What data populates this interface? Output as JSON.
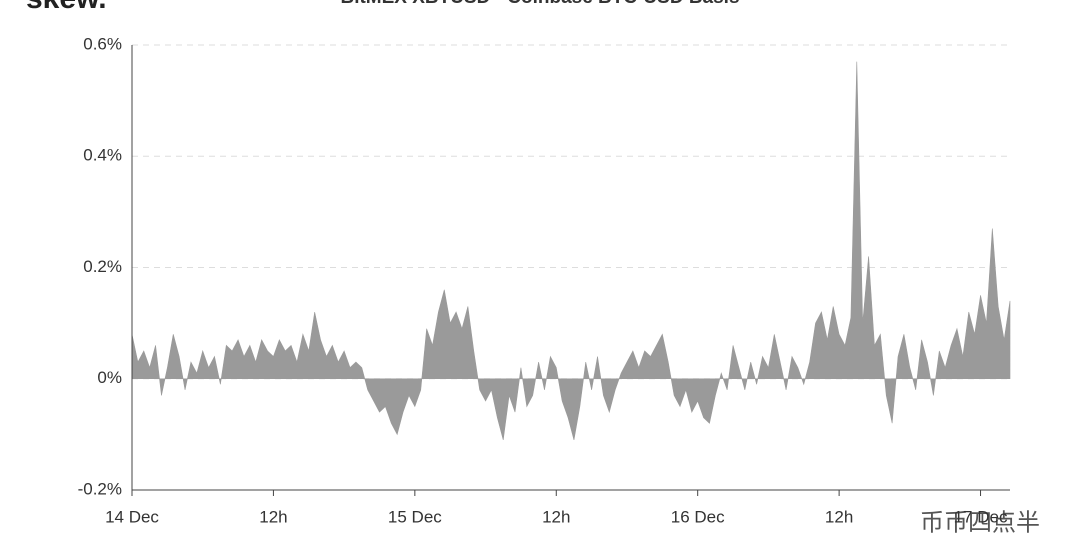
{
  "chart_data": {
    "type": "area",
    "brand": "skew.",
    "title": "BitMEX XBTUSD - Coinbase BTC-USD Basis",
    "watermark": "币币四点半",
    "x": [
      0,
      0.5,
      1,
      1.5,
      2,
      2.5,
      3,
      3.5,
      4,
      4.5,
      5,
      5.5,
      6,
      6.5,
      7,
      7.5,
      8,
      8.5,
      9,
      9.5,
      10,
      10.5,
      11,
      11.5,
      12,
      12.5,
      13,
      13.5,
      14,
      14.5,
      15,
      15.5,
      16,
      16.5,
      17,
      17.5,
      18,
      18.5,
      19,
      19.5,
      20,
      20.5,
      21,
      21.5,
      22,
      22.5,
      23,
      23.5,
      24,
      24.5,
      25,
      25.5,
      26,
      26.5,
      27,
      27.5,
      28,
      28.5,
      29,
      29.5,
      30,
      30.5,
      31,
      31.5,
      32,
      32.5,
      33,
      33.5,
      34,
      34.5,
      35,
      35.5,
      36,
      36.5,
      37,
      37.5,
      38,
      38.5,
      39,
      39.5,
      40,
      40.5,
      41,
      41.5,
      42,
      42.5,
      43,
      43.5,
      44,
      44.5,
      45,
      45.5,
      46,
      46.5,
      47,
      47.5,
      48,
      48.5,
      49,
      49.5,
      50,
      50.5,
      51,
      51.5,
      52,
      52.5,
      53,
      53.5,
      54,
      54.5,
      55,
      55.5,
      56,
      56.5,
      57,
      57.5,
      58,
      58.5,
      59,
      59.5,
      60,
      60.5,
      61,
      61.5,
      62,
      62.5,
      63,
      63.5,
      64,
      64.5,
      65,
      65.5,
      66,
      66.5,
      67,
      67.5,
      68,
      68.5,
      69,
      69.5,
      70,
      70.5,
      71,
      71.5,
      72,
      72.5,
      73,
      73.5,
      74,
      74.5
    ],
    "series": [
      {
        "color": "#9a9a9a",
        "values": [
          0.08,
          0.03,
          0.05,
          0.02,
          0.06,
          -0.03,
          0.02,
          0.08,
          0.04,
          -0.02,
          0.03,
          0.01,
          0.05,
          0.02,
          0.04,
          -0.01,
          0.06,
          0.05,
          0.07,
          0.04,
          0.06,
          0.03,
          0.07,
          0.05,
          0.04,
          0.07,
          0.05,
          0.06,
          0.03,
          0.08,
          0.05,
          0.12,
          0.07,
          0.04,
          0.06,
          0.03,
          0.05,
          0.02,
          0.03,
          0.02,
          -0.02,
          -0.04,
          -0.06,
          -0.05,
          -0.08,
          -0.1,
          -0.06,
          -0.03,
          -0.05,
          -0.02,
          0.09,
          0.06,
          0.12,
          0.16,
          0.1,
          0.12,
          0.09,
          0.13,
          0.05,
          -0.02,
          -0.04,
          -0.02,
          -0.07,
          -0.11,
          -0.03,
          -0.06,
          0.02,
          -0.05,
          -0.03,
          0.03,
          -0.02,
          0.04,
          0.02,
          -0.04,
          -0.07,
          -0.11,
          -0.05,
          0.03,
          -0.02,
          0.04,
          -0.03,
          -0.06,
          -0.02,
          0.01,
          0.03,
          0.05,
          0.02,
          0.05,
          0.04,
          0.06,
          0.08,
          0.03,
          -0.03,
          -0.05,
          -0.02,
          -0.06,
          -0.04,
          -0.07,
          -0.08,
          -0.03,
          0.01,
          -0.02,
          0.06,
          0.02,
          -0.02,
          0.03,
          -0.01,
          0.04,
          0.02,
          0.08,
          0.03,
          -0.02,
          0.04,
          0.02,
          -0.01,
          0.03,
          0.1,
          0.12,
          0.07,
          0.13,
          0.08,
          0.06,
          0.11,
          0.57,
          0.1,
          0.22,
          0.06,
          0.08,
          -0.03,
          -0.08,
          0.04,
          0.08,
          0.02,
          -0.02,
          0.07,
          0.03,
          -0.03,
          0.05,
          0.02,
          0.06,
          0.09,
          0.04,
          0.12,
          0.08,
          0.15,
          0.1,
          0.27,
          0.13,
          0.07,
          0.14
        ]
      }
    ],
    "xlim": [
      0,
      74.5
    ],
    "xticks": [
      {
        "value": 0,
        "label": "14 Dec"
      },
      {
        "value": 12,
        "label": "12h"
      },
      {
        "value": 24,
        "label": "15 Dec"
      },
      {
        "value": 36,
        "label": "12h"
      },
      {
        "value": 48,
        "label": "16 Dec"
      },
      {
        "value": 60,
        "label": "12h"
      },
      {
        "value": 72,
        "label": "17 Dec"
      }
    ],
    "ylim": [
      -0.2,
      0.6
    ],
    "yticks": [
      {
        "value": -0.2,
        "label": "-0.2%"
      },
      {
        "value": 0,
        "label": "0%"
      },
      {
        "value": 0.2,
        "label": "0.2%"
      },
      {
        "value": 0.4,
        "label": "0.4%"
      },
      {
        "value": 0.6,
        "label": "0.6%"
      }
    ],
    "grid": true
  }
}
